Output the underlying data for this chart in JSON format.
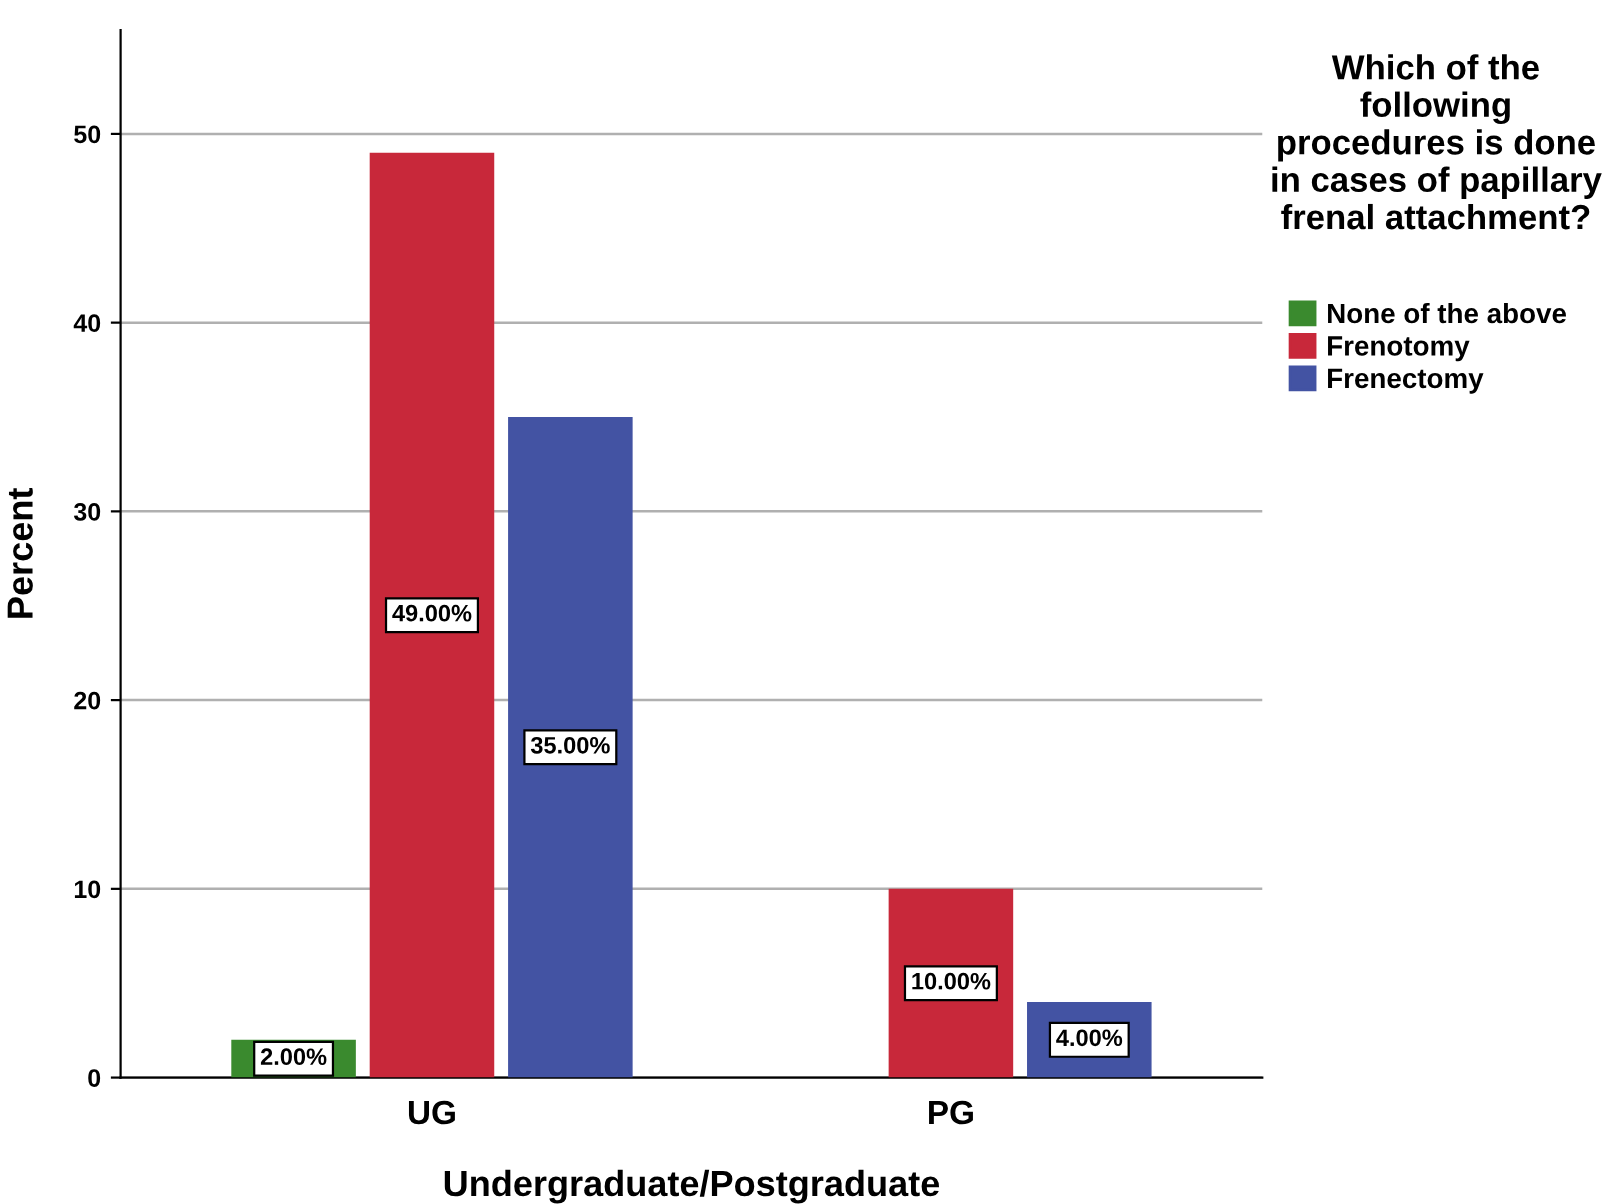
{
  "chart_data": {
    "type": "bar",
    "xlabel": "Undergraduate/Postgraduate",
    "ylabel": "Percent",
    "legend_title": "Which of the following procedures is done in cases of papillary frenal attachment?",
    "categories": [
      "UG",
      "PG"
    ],
    "series": [
      {
        "name": "None of the above",
        "color": "#3a8a2e",
        "values": [
          2,
          null
        ],
        "value_labels": [
          "2.00%",
          null
        ]
      },
      {
        "name": "Frenotomy",
        "color": "#c8283a",
        "values": [
          49,
          10
        ],
        "value_labels": [
          "49.00%",
          "10.00%"
        ]
      },
      {
        "name": "Frenectomy",
        "color": "#4353a3",
        "values": [
          35,
          4
        ],
        "value_labels": [
          "35.00%",
          "4.00%"
        ]
      }
    ],
    "ylim": [
      0,
      55.5
    ],
    "yticks": [
      0,
      10,
      20,
      30,
      40,
      50
    ],
    "grid": "y",
    "legend": "right"
  }
}
